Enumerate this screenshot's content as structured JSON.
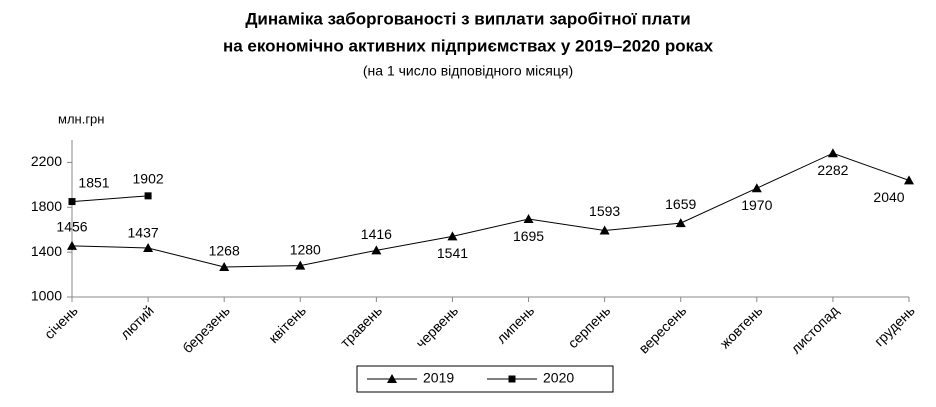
{
  "chart_data": {
    "type": "line",
    "title": [
      "Динаміка заборгованості з виплати заробітної плати",
      "на економічно активних підприємствах у 2019–2020 роках"
    ],
    "subtitle": "(на 1 число відповідного місяця)",
    "y_label": "млн.грн",
    "categories": [
      "січень",
      "лютий",
      "березень",
      "квітень",
      "травень",
      "червень",
      "липень",
      "серпень",
      "вересень",
      "жовтень",
      "листопад",
      "грудень"
    ],
    "series": [
      {
        "name": "2019",
        "color": "#000000",
        "marker": "triangle",
        "values": [
          1456,
          1437,
          1268,
          1280,
          1416,
          1541,
          1695,
          1593,
          1659,
          1970,
          2282,
          2040
        ]
      },
      {
        "name": "2020",
        "color": "#000000",
        "marker": "square",
        "values": [
          1851,
          1902,
          null,
          null,
          null,
          null,
          null,
          null,
          null,
          null,
          null,
          null
        ]
      }
    ],
    "ylim": [
      1000,
      2400
    ],
    "yticks": [
      1000,
      1400,
      1800,
      2200
    ],
    "grid": false,
    "legend": "bottom"
  }
}
